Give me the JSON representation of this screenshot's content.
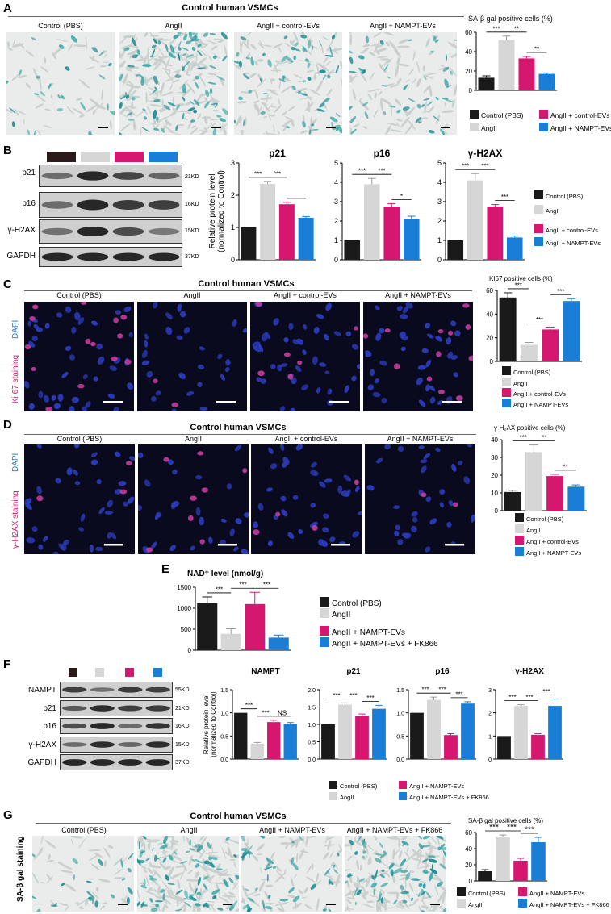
{
  "colors": {
    "control": "#1a1a1a",
    "angii": "#d6d6d6",
    "ctrl_evs": "#d6176f",
    "nampt_evs": "#1b7ed6",
    "blot_dark": "#222222",
    "swatch_brown": "#2a1a1a"
  },
  "panelA": {
    "label": "A",
    "title": "Control human VSMCs",
    "images": [
      "Control (PBS)",
      "AngII",
      "AngII + control-EVs",
      "AngII + NAMPT-EVs"
    ]
  },
  "panelB": {
    "label": "B",
    "blots": [
      {
        "name": "p21",
        "kd": "21KD"
      },
      {
        "name": "p16",
        "kd": "16KD"
      },
      {
        "name": "γ-H2AX",
        "kd": "15KD"
      },
      {
        "name": "GAPDH",
        "kd": "37KD"
      }
    ]
  },
  "panelC": {
    "label": "C",
    "title": "Control human VSMCs",
    "images": [
      "Control (PBS)",
      "AngII",
      "AngII + control-EVs",
      "AngII + NAMPT-EVs"
    ],
    "stain_dapi": "DAPI",
    "stain_other": "Ki 67 staining"
  },
  "panelD": {
    "label": "D",
    "title": "Control human VSMCs",
    "images": [
      "Control (PBS)",
      "AngII",
      "AngII + control-EVs",
      "AngII + NAMPT-EVs"
    ],
    "stain_dapi": "DAPI",
    "stain_other": "γ-H2AX staining"
  },
  "panelE": {
    "label": "E"
  },
  "panelF": {
    "label": "F",
    "blots": [
      {
        "name": "NAMPT",
        "kd": "55KD"
      },
      {
        "name": "p21",
        "kd": "21KD"
      },
      {
        "name": "p16",
        "kd": "16KD"
      },
      {
        "name": "γ-H2AX",
        "kd": "15KD"
      },
      {
        "name": "GAPDH",
        "kd": "37KD"
      }
    ]
  },
  "panelG": {
    "label": "G",
    "title": "Control human VSMCs",
    "images": [
      "Control (PBS)",
      "AngII",
      "AngII + NAMPT-EVs",
      "AngII + NAMPT-EVs + FK866"
    ],
    "side_label": "SA-β gal staining"
  },
  "chart_data": [
    {
      "id": "A_sabgal",
      "type": "bar",
      "title": "SA-β gal positive cells (%)",
      "categories": [
        "Control (PBS)",
        "AngII",
        "AngII + control-EVs",
        "AngII + NAMPT-EVs"
      ],
      "values": [
        13,
        52,
        33,
        17
      ],
      "errors": [
        2,
        4,
        2,
        1
      ],
      "ylim": [
        0,
        60
      ],
      "yticks": [
        0,
        20,
        40,
        60
      ],
      "ylabel": "",
      "sig": [
        {
          "a": 0,
          "b": 1,
          "t": "***"
        },
        {
          "a": 1,
          "b": 2,
          "t": "**"
        },
        {
          "a": 2,
          "b": 3,
          "t": "**"
        }
      ],
      "legend": [
        "Control (PBS)",
        "AngII",
        "AngII + control-EVs",
        "AngII + NAMPT-EVs"
      ]
    },
    {
      "id": "B_p21",
      "type": "bar",
      "title": "p21",
      "categories": [
        "Control (PBS)",
        "AngII",
        "AngII + control-EVs",
        "AngII + NAMPT-EVs"
      ],
      "values": [
        1.0,
        2.35,
        1.72,
        1.3
      ],
      "errors": [
        0,
        0.08,
        0.06,
        0.04
      ],
      "ylim": [
        0,
        3
      ],
      "yticks": [
        0,
        1,
        2,
        3
      ],
      "ylabel": "Relative protein level (normalized to Control)",
      "sig": [
        {
          "a": 0,
          "b": 1,
          "t": "***"
        },
        {
          "a": 1,
          "b": 2,
          "t": "***"
        },
        {
          "a": 2,
          "b": 3,
          "t": ""
        }
      ]
    },
    {
      "id": "B_p16",
      "type": "bar",
      "title": "p16",
      "categories": [
        "Control (PBS)",
        "AngII",
        "AngII + control-EVs",
        "AngII + NAMPT-EVs"
      ],
      "values": [
        1.0,
        3.9,
        2.75,
        2.1
      ],
      "errors": [
        0,
        0.3,
        0.15,
        0.15
      ],
      "ylim": [
        0,
        5
      ],
      "yticks": [
        0,
        1,
        2,
        3,
        4,
        5
      ],
      "ylabel": "",
      "sig": [
        {
          "a": 0,
          "b": 1,
          "t": "***"
        },
        {
          "a": 1,
          "b": 2,
          "t": "***"
        },
        {
          "a": 2,
          "b": 3,
          "t": "*"
        }
      ]
    },
    {
      "id": "B_gH2AX",
      "type": "bar",
      "title": "γ-H2AX",
      "categories": [
        "Control (PBS)",
        "AngII",
        "AngII + control-EVs",
        "AngII + NAMPT-EVs"
      ],
      "values": [
        1.0,
        4.1,
        2.75,
        1.15
      ],
      "errors": [
        0,
        0.35,
        0.1,
        0.08
      ],
      "ylim": [
        0,
        5
      ],
      "yticks": [
        0,
        1,
        2,
        3,
        4,
        5
      ],
      "ylabel": "",
      "sig": [
        {
          "a": 0,
          "b": 1,
          "t": "***"
        },
        {
          "a": 1,
          "b": 2,
          "t": "***"
        },
        {
          "a": 2,
          "b": 3,
          "t": "***"
        }
      ],
      "legend": [
        "Control (PBS)",
        "AngII",
        "AngII + control-EVs",
        "AngII + NAMPT-EVs"
      ]
    },
    {
      "id": "C_ki67",
      "type": "bar",
      "title": "KI67 positive cells (%)",
      "categories": [
        "Control (PBS)",
        "AngII",
        "AngII + control-EVs",
        "AngII + NAMPT-EVs"
      ],
      "values": [
        54,
        14,
        27,
        51
      ],
      "errors": [
        4,
        2,
        2,
        2
      ],
      "ylim": [
        0,
        60
      ],
      "yticks": [
        0,
        20,
        40,
        60
      ],
      "ylabel": "",
      "sig": [
        {
          "a": 0,
          "b": 1,
          "t": "***"
        },
        {
          "a": 1,
          "b": 2,
          "t": "***"
        },
        {
          "a": 2,
          "b": 3,
          "t": "***"
        }
      ],
      "legend": [
        "Control (PBS)",
        "AngII",
        "AngII + control-EVs",
        "AngII + NAMPT-EVs"
      ]
    },
    {
      "id": "D_gh2ax",
      "type": "bar",
      "title": "γ-H₂AX positive cells (%)",
      "categories": [
        "Control (PBS)",
        "AngII",
        "AngII + control-EVs",
        "AngII + NAMPT-EVs"
      ],
      "values": [
        10.5,
        33,
        19.5,
        13.5
      ],
      "errors": [
        1,
        4,
        1,
        1
      ],
      "ylim": [
        0,
        40
      ],
      "yticks": [
        0,
        10,
        20,
        30,
        40
      ],
      "ylabel": "",
      "sig": [
        {
          "a": 0,
          "b": 1,
          "t": "***"
        },
        {
          "a": 1,
          "b": 2,
          "t": "**"
        },
        {
          "a": 2,
          "b": 3,
          "t": "**"
        }
      ],
      "legend": [
        "Control (PBS)",
        "AngII",
        "AngII + control-EVs",
        "AngII + NAMPT-EVs"
      ]
    },
    {
      "id": "E_nad",
      "type": "bar",
      "title": "NAD⁺ level (nmol/g)",
      "categories": [
        "Control (PBS)",
        "AngII",
        "AngII + NAMPT-EVs",
        "AngII + NAMPT-EVs + FK866"
      ],
      "values": [
        1120,
        390,
        1100,
        300
      ],
      "errors": [
        150,
        120,
        280,
        60
      ],
      "ylim": [
        0,
        1500
      ],
      "yticks": [
        0,
        500,
        1000,
        1500
      ],
      "ylabel": "",
      "sig": [
        {
          "a": 0,
          "b": 1,
          "t": "***"
        },
        {
          "a": 1,
          "b": 2,
          "t": "***"
        },
        {
          "a": 2,
          "b": 3,
          "t": "***"
        }
      ],
      "legend": [
        "Control (PBS)",
        "AngII",
        "AngII + NAMPT-EVs",
        "AngII + NAMPT-EVs + FK866"
      ]
    },
    {
      "id": "F_nampt",
      "type": "bar",
      "title": "NAMPT",
      "categories": [
        "Control (PBS)",
        "AngII",
        "AngII + NAMPT-EVs",
        "AngII + NAMPT-EVs + FK866"
      ],
      "values": [
        1.0,
        0.33,
        0.8,
        0.76
      ],
      "errors": [
        0,
        0.03,
        0.04,
        0.03
      ],
      "ylim": [
        0,
        1.5
      ],
      "yticks": [
        0,
        0.5,
        1.0,
        1.5
      ],
      "ylabel": "Relative protein level (normalized to Control)",
      "sig": [
        {
          "a": 0,
          "b": 1,
          "t": "***"
        },
        {
          "a": 1,
          "b": 2,
          "t": "***"
        },
        {
          "a": 2,
          "b": 3,
          "t": "NS"
        }
      ]
    },
    {
      "id": "F_p21",
      "type": "bar",
      "title": "p21",
      "categories": [
        "Control (PBS)",
        "AngII",
        "AngII + NAMPT-EVs",
        "AngII + NAMPT-EVs + FK866"
      ],
      "values": [
        1.0,
        1.57,
        1.25,
        1.45
      ],
      "errors": [
        0,
        0.05,
        0.05,
        0.1
      ],
      "ylim": [
        0,
        2
      ],
      "yticks": [
        0,
        0.5,
        1.0,
        1.5,
        2.0
      ],
      "ylabel": "",
      "sig": [
        {
          "a": 0,
          "b": 1,
          "t": "***"
        },
        {
          "a": 1,
          "b": 2,
          "t": "***"
        },
        {
          "a": 2,
          "b": 3,
          "t": "***"
        }
      ]
    },
    {
      "id": "F_p16",
      "type": "bar",
      "title": "p16",
      "categories": [
        "Control (PBS)",
        "AngII",
        "AngII + NAMPT-EVs",
        "AngII + NAMPT-EVs + FK866"
      ],
      "values": [
        1.0,
        1.28,
        0.52,
        1.2
      ],
      "errors": [
        0,
        0.06,
        0.03,
        0.04
      ],
      "ylim": [
        0,
        1.5
      ],
      "yticks": [
        0,
        0.5,
        1.0,
        1.5
      ],
      "ylabel": "",
      "sig": [
        {
          "a": 0,
          "b": 1,
          "t": "***"
        },
        {
          "a": 1,
          "b": 2,
          "t": "***"
        },
        {
          "a": 2,
          "b": 3,
          "t": "***"
        }
      ]
    },
    {
      "id": "F_gh2ax",
      "type": "bar",
      "title": "γ-H2AX",
      "categories": [
        "Control (PBS)",
        "AngII",
        "AngII + NAMPT-EVs",
        "AngII + NAMPT-EVs + FK866"
      ],
      "values": [
        1.0,
        2.3,
        1.05,
        2.3
      ],
      "errors": [
        0,
        0.05,
        0.05,
        0.3
      ],
      "ylim": [
        0,
        3
      ],
      "yticks": [
        0,
        1,
        2,
        3
      ],
      "ylabel": "",
      "sig": [
        {
          "a": 0,
          "b": 1,
          "t": "***"
        },
        {
          "a": 1,
          "b": 2,
          "t": "***"
        },
        {
          "a": 2,
          "b": 3,
          "t": "***"
        }
      ]
    },
    {
      "id": "G_sabgal",
      "type": "bar",
      "title": "SA-β gal positive cells (%)",
      "categories": [
        "Control (PBS)",
        "AngII",
        "AngII + NAMPT-EVs",
        "AngII + NAMPT-EVs + FK866"
      ],
      "values": [
        12,
        55,
        25,
        48
      ],
      "errors": [
        2,
        2,
        3,
        6
      ],
      "ylim": [
        0,
        60
      ],
      "yticks": [
        0,
        20,
        40,
        60
      ],
      "ylabel": "",
      "sig": [
        {
          "a": 0,
          "b": 1,
          "t": "***"
        },
        {
          "a": 1,
          "b": 2,
          "t": "***"
        },
        {
          "a": 2,
          "b": 3,
          "t": "***"
        }
      ],
      "legend": [
        "Control (PBS)",
        "AngII",
        "AngII + NAMPT-EVs",
        "AngII + NAMPT-EVs + FK866"
      ]
    }
  ]
}
